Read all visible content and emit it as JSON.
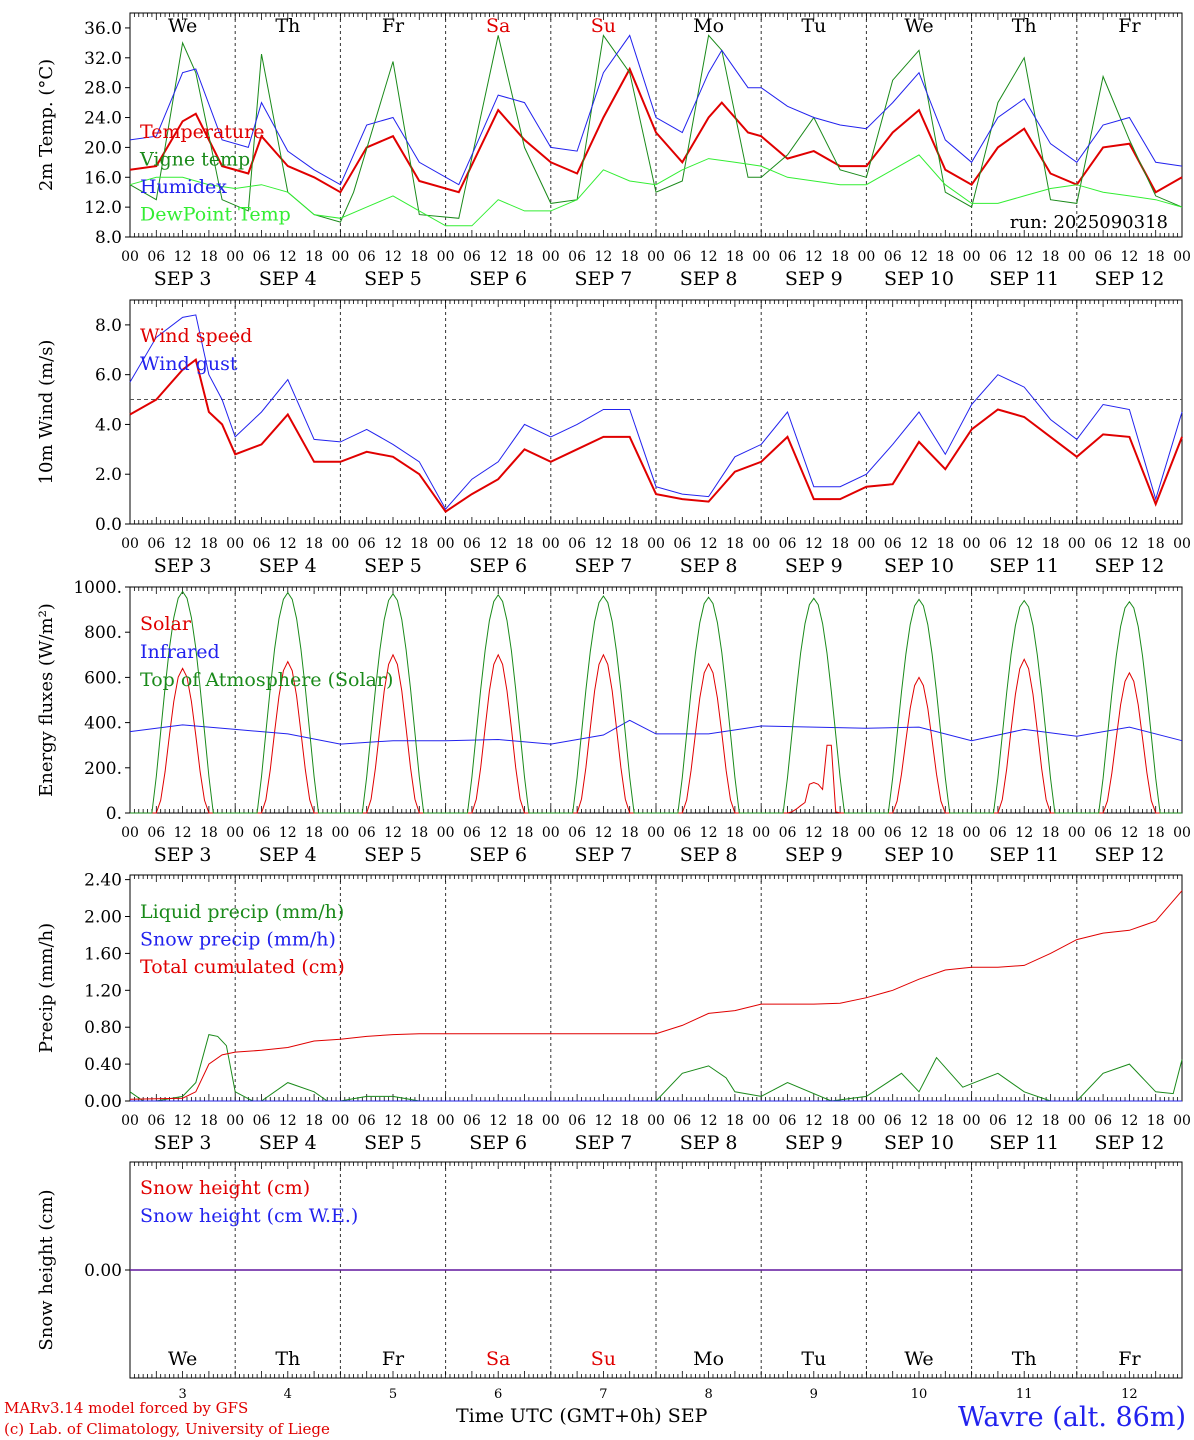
{
  "footer": {
    "model": "MARv3.14 model forced by GFS",
    "lab": "(c) Lab. of Climatology, University of Liege",
    "xaxis": "Time UTC (GMT+0h) SEP",
    "station": "Wavre (alt. 86m)"
  },
  "day_labels": [
    "We",
    "Th",
    "Fr",
    "Sa",
    "Su",
    "Mo",
    "Tu",
    "We",
    "Th",
    "Fr"
  ],
  "weekend_color": "#e00000",
  "date_labels": [
    "SEP  3",
    "SEP  4",
    "SEP  5",
    "SEP  6",
    "SEP  7",
    "SEP  8",
    "SEP  9",
    "SEP 10",
    "SEP 11",
    "SEP 12"
  ],
  "bottom_day_numbers": [
    "3",
    "4",
    "5",
    "6",
    "7",
    "8",
    "9",
    "10",
    "11",
    "12"
  ],
  "hour_ticks": [
    "00",
    "06",
    "12",
    "18"
  ],
  "chart_data": [
    {
      "type": "line",
      "ylabel": "2m Temp. (°C)",
      "yticks": [
        "8.0",
        "12.0",
        "16.0",
        "20.0",
        "24.0",
        "28.0",
        "32.0",
        "36.0"
      ],
      "ylim": [
        8,
        38
      ],
      "annotation": "run: 2025090318",
      "x_unit": "hours from SEP 3 00 UTC",
      "series": [
        {
          "name": "Temperature",
          "color": "#e00000",
          "width": 2,
          "x": [
            0,
            6,
            12,
            15,
            21,
            27,
            30,
            36,
            42,
            48,
            54,
            60,
            66,
            75,
            84,
            90,
            96,
            102,
            108,
            114,
            120,
            126,
            132,
            135,
            141,
            144,
            150,
            156,
            162,
            168,
            174,
            180,
            186,
            192,
            198,
            204,
            210,
            216,
            222,
            228,
            234,
            240
          ],
          "y": [
            17,
            17.5,
            23.5,
            24.5,
            17.5,
            16.5,
            21.5,
            17.5,
            16,
            14,
            20,
            21.5,
            15.5,
            14,
            25,
            21,
            18,
            16.5,
            24,
            30.5,
            22,
            18,
            24,
            26,
            22,
            21.5,
            18.5,
            19.5,
            17.5,
            17.5,
            22,
            25,
            17,
            15,
            20,
            22.5,
            16.5,
            15,
            20,
            20.5,
            14,
            16
          ]
        },
        {
          "name": "Vigne temp",
          "color": "#1a8a1a",
          "width": 1,
          "x": [
            0,
            6,
            12,
            15,
            21,
            27,
            30,
            36,
            42,
            48,
            51,
            60,
            66,
            75,
            84,
            90,
            96,
            102,
            108,
            114,
            120,
            126,
            132,
            135,
            141,
            144,
            150,
            156,
            162,
            168,
            174,
            180,
            186,
            192,
            198,
            204,
            210,
            216,
            222,
            228,
            234,
            240
          ],
          "y": [
            15,
            13,
            34,
            30,
            13,
            11.5,
            32.5,
            14,
            11,
            10,
            14,
            31.5,
            11,
            10.5,
            35,
            20,
            12.5,
            13,
            35,
            30,
            14,
            15.5,
            35,
            33,
            16,
            16,
            19,
            24,
            17,
            16,
            29,
            33,
            14,
            12,
            26,
            32,
            13,
            12.5,
            29.5,
            21,
            13.5,
            12
          ]
        },
        {
          "name": "Humidex",
          "color": "#2222ee",
          "width": 1,
          "x": [
            0,
            6,
            12,
            15,
            21,
            27,
            30,
            36,
            42,
            48,
            54,
            60,
            66,
            75,
            84,
            90,
            96,
            102,
            108,
            114,
            120,
            126,
            132,
            135,
            141,
            144,
            150,
            156,
            162,
            168,
            174,
            180,
            186,
            192,
            198,
            204,
            210,
            216,
            222,
            228,
            234,
            240
          ],
          "y": [
            21,
            21.5,
            30,
            30.5,
            21,
            20,
            26,
            19.5,
            17,
            15,
            23,
            24,
            18,
            15,
            27,
            26,
            20,
            19.5,
            30,
            35,
            24,
            22,
            30,
            33,
            28,
            28,
            25.5,
            24,
            23,
            22.5,
            26,
            30,
            21,
            18,
            24,
            26.5,
            20.5,
            18,
            23,
            24,
            18,
            17.5
          ]
        },
        {
          "name": "DewPoint Temp",
          "color": "#33ee33",
          "width": 1,
          "x": [
            0,
            6,
            12,
            18,
            24,
            30,
            36,
            42,
            48,
            54,
            60,
            66,
            72,
            78,
            84,
            90,
            96,
            102,
            108,
            114,
            120,
            126,
            132,
            138,
            144,
            150,
            156,
            162,
            168,
            174,
            180,
            186,
            192,
            198,
            204,
            210,
            216,
            222,
            228,
            234,
            240
          ],
          "y": [
            15,
            16,
            16,
            15,
            14.5,
            15,
            14,
            11,
            10.5,
            12,
            13.5,
            11.5,
            9.5,
            9.5,
            13,
            11.5,
            11.5,
            13,
            17,
            15.5,
            15,
            17,
            18.5,
            18,
            17.5,
            16,
            15.5,
            15,
            15,
            17,
            19,
            15,
            12.5,
            12.5,
            13.5,
            14.5,
            15,
            14,
            13.5,
            13,
            12
          ]
        }
      ]
    },
    {
      "type": "line",
      "ylabel": "10m Wind (m/s)",
      "yticks": [
        "0.0",
        "2.0",
        "4.0",
        "6.0",
        "8.0"
      ],
      "ylim": [
        0,
        9
      ],
      "reference_line": 5,
      "series": [
        {
          "name": "Wind speed",
          "color": "#e00000",
          "width": 2,
          "x": [
            0,
            6,
            12,
            15,
            18,
            21,
            24,
            30,
            36,
            42,
            48,
            54,
            60,
            66,
            72,
            78,
            84,
            90,
            96,
            102,
            108,
            114,
            120,
            126,
            132,
            138,
            144,
            150,
            156,
            162,
            168,
            174,
            180,
            186,
            192,
            198,
            204,
            210,
            216,
            222,
            228,
            234,
            240
          ],
          "y": [
            4.4,
            5,
            6.2,
            6.6,
            4.5,
            4,
            2.8,
            3.2,
            4.4,
            2.5,
            2.5,
            2.9,
            2.7,
            2,
            0.5,
            1.2,
            1.8,
            3.0,
            2.5,
            3.0,
            3.5,
            3.5,
            1.2,
            1.0,
            0.9,
            2.1,
            2.5,
            3.5,
            1.0,
            1.0,
            1.5,
            1.6,
            3.3,
            2.2,
            3.8,
            4.6,
            4.3,
            3.5,
            2.7,
            3.6,
            3.5,
            0.8,
            3.5
          ]
        },
        {
          "name": "Wind gust",
          "color": "#2222ee",
          "width": 1,
          "x": [
            0,
            6,
            12,
            15,
            18,
            21,
            24,
            30,
            36,
            42,
            48,
            54,
            60,
            66,
            72,
            78,
            84,
            90,
            96,
            102,
            108,
            114,
            120,
            126,
            132,
            138,
            144,
            150,
            156,
            162,
            168,
            174,
            180,
            186,
            192,
            198,
            204,
            210,
            216,
            222,
            228,
            234,
            240
          ],
          "y": [
            5.7,
            7.5,
            8.3,
            8.4,
            6,
            5,
            3.5,
            4.5,
            5.8,
            3.4,
            3.3,
            3.8,
            3.2,
            2.5,
            0.6,
            1.8,
            2.5,
            4,
            3.5,
            4,
            4.6,
            4.6,
            1.5,
            1.2,
            1.1,
            2.7,
            3.2,
            4.5,
            1.5,
            1.5,
            2,
            3.2,
            4.5,
            2.8,
            4.8,
            6.0,
            5.5,
            4.2,
            3.4,
            4.8,
            4.6,
            1.0,
            4.5
          ]
        }
      ]
    },
    {
      "type": "line",
      "ylabel": "Energy fluxes (W/m²)",
      "yticks": [
        "0.",
        "200.",
        "400.",
        "600.",
        "800.",
        "1000."
      ],
      "ylim": [
        0,
        1000
      ],
      "series": [
        {
          "name": "Solar",
          "color": "#e00000",
          "width": 1,
          "peaks": [
            640,
            670,
            700,
            700,
            700,
            660,
            300,
            600,
            680,
            620
          ],
          "note": "daily solar radiation, peak near 12 UTC"
        },
        {
          "name": "Infrared",
          "color": "#2222ee",
          "width": 1,
          "x": [
            0,
            12,
            24,
            36,
            48,
            60,
            72,
            84,
            96,
            108,
            114,
            120,
            132,
            144,
            156,
            168,
            180,
            192,
            204,
            216,
            228,
            240
          ],
          "y": [
            360,
            390,
            370,
            350,
            305,
            320,
            320,
            325,
            305,
            345,
            410,
            350,
            350,
            385,
            380,
            375,
            380,
            320,
            370,
            340,
            380,
            320
          ]
        },
        {
          "name": "Top of Atmosphere (Solar)",
          "color": "#1a8a1a",
          "width": 1,
          "peaks": [
            980,
            975,
            970,
            965,
            960,
            955,
            950,
            945,
            940,
            935
          ],
          "note": "daily top-of-atmosphere solar, 05-19 UTC"
        }
      ]
    },
    {
      "type": "line",
      "ylabel": "Precip (mm/h)",
      "yticks": [
        "0.00",
        "0.40",
        "0.80",
        "1.20",
        "1.60",
        "2.00",
        "2.40"
      ],
      "ylim": [
        0,
        2.45
      ],
      "series": [
        {
          "name": "Liquid precip (mm/h)",
          "color": "#1a8a1a",
          "width": 1,
          "x": [
            0,
            3,
            6,
            12,
            15,
            18,
            20,
            22,
            24,
            26,
            28,
            30,
            36,
            42,
            45,
            48,
            54,
            60,
            66,
            72,
            108,
            120,
            126,
            132,
            136,
            138,
            144,
            150,
            160,
            168,
            176,
            180,
            184,
            190,
            198,
            204,
            210,
            216,
            222,
            228,
            234,
            238,
            240
          ],
          "y": [
            0.1,
            0,
            0,
            0.05,
            0.2,
            0.72,
            0.7,
            0.6,
            0.1,
            0.05,
            0,
            0,
            0.2,
            0.1,
            0,
            0,
            0.05,
            0.05,
            0,
            0,
            0,
            0,
            0.3,
            0.38,
            0.25,
            0.1,
            0.05,
            0.2,
            0,
            0.05,
            0.3,
            0.1,
            0.47,
            0.15,
            0.3,
            0.1,
            0,
            0,
            0.3,
            0.4,
            0.1,
            0.08,
            0.45
          ]
        },
        {
          "name": "Snow precip (mm/h)",
          "color": "#2222ee",
          "width": 1,
          "x": [
            0,
            240
          ],
          "y": [
            0,
            0
          ]
        },
        {
          "name": "Total cumulated (cm)",
          "color": "#e00000",
          "width": 1,
          "x": [
            0,
            12,
            15,
            18,
            21,
            24,
            30,
            36,
            42,
            48,
            54,
            60,
            66,
            72,
            84,
            96,
            108,
            120,
            126,
            132,
            138,
            144,
            150,
            156,
            162,
            168,
            174,
            180,
            186,
            192,
            198,
            204,
            210,
            216,
            222,
            228,
            234,
            240
          ],
          "y": [
            0.02,
            0.03,
            0.1,
            0.4,
            0.5,
            0.53,
            0.55,
            0.58,
            0.65,
            0.67,
            0.7,
            0.72,
            0.73,
            0.73,
            0.73,
            0.73,
            0.73,
            0.73,
            0.82,
            0.95,
            0.98,
            1.05,
            1.05,
            1.05,
            1.06,
            1.12,
            1.2,
            1.32,
            1.42,
            1.45,
            1.45,
            1.47,
            1.6,
            1.75,
            1.82,
            1.85,
            1.95,
            2.28
          ]
        }
      ]
    },
    {
      "type": "line",
      "ylabel": "Snow height (cm)",
      "yticks": [
        "0.00"
      ],
      "ylim": [
        -1,
        1
      ],
      "series": [
        {
          "name": "Snow height (cm)",
          "color": "#e00000",
          "width": 1.5,
          "x": [
            0,
            240
          ],
          "y": [
            0,
            0
          ]
        },
        {
          "name": "Snow height (cm W.E.)",
          "color": "#2222ee",
          "width": 1,
          "x": [
            0,
            240
          ],
          "y": [
            0,
            0
          ]
        }
      ]
    }
  ]
}
